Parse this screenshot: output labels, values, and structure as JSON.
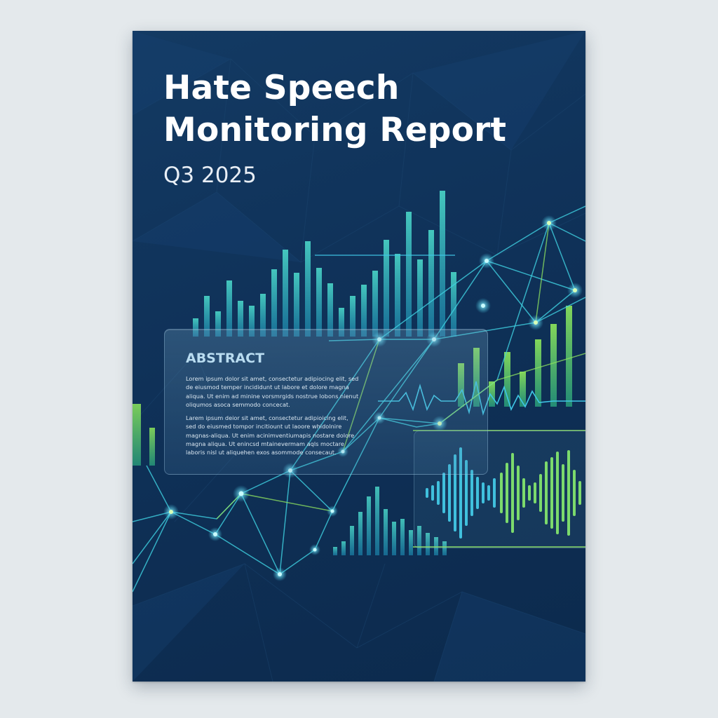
{
  "report": {
    "title_line1": "Hate Speech",
    "title_line2": "Monitoring Report",
    "period": "Q3 2025"
  },
  "abstract": {
    "heading": "ABSTRACT",
    "paragraph_1": "Lorem ipsum dolor sit amet, consectetur adipiocing elit, sed de eiusmod temper incididunt ut labore et dolore magna aliqua. Ut enim ad minine vorsmrgids nostrue lobons nienut oliqumos asoca semmodo concecat.",
    "paragraph_2": "Larem ipsum deior sit amet, consectetur adipioicing elit, sed do eiusmed tompor incitiount ut laoore whidolnire magnas-aliqua. Ut enim acinimventiumapis nostare dolore magna aliqua. Ut enincsd mtainevermam aqls moctare laboris nisl ut aliquehen exos asommode consecaut."
  },
  "colors": {
    "background": "#0f3158",
    "accent_cyan": "#37c3dc",
    "accent_green": "#7fe05a",
    "title": "#ffffff"
  }
}
